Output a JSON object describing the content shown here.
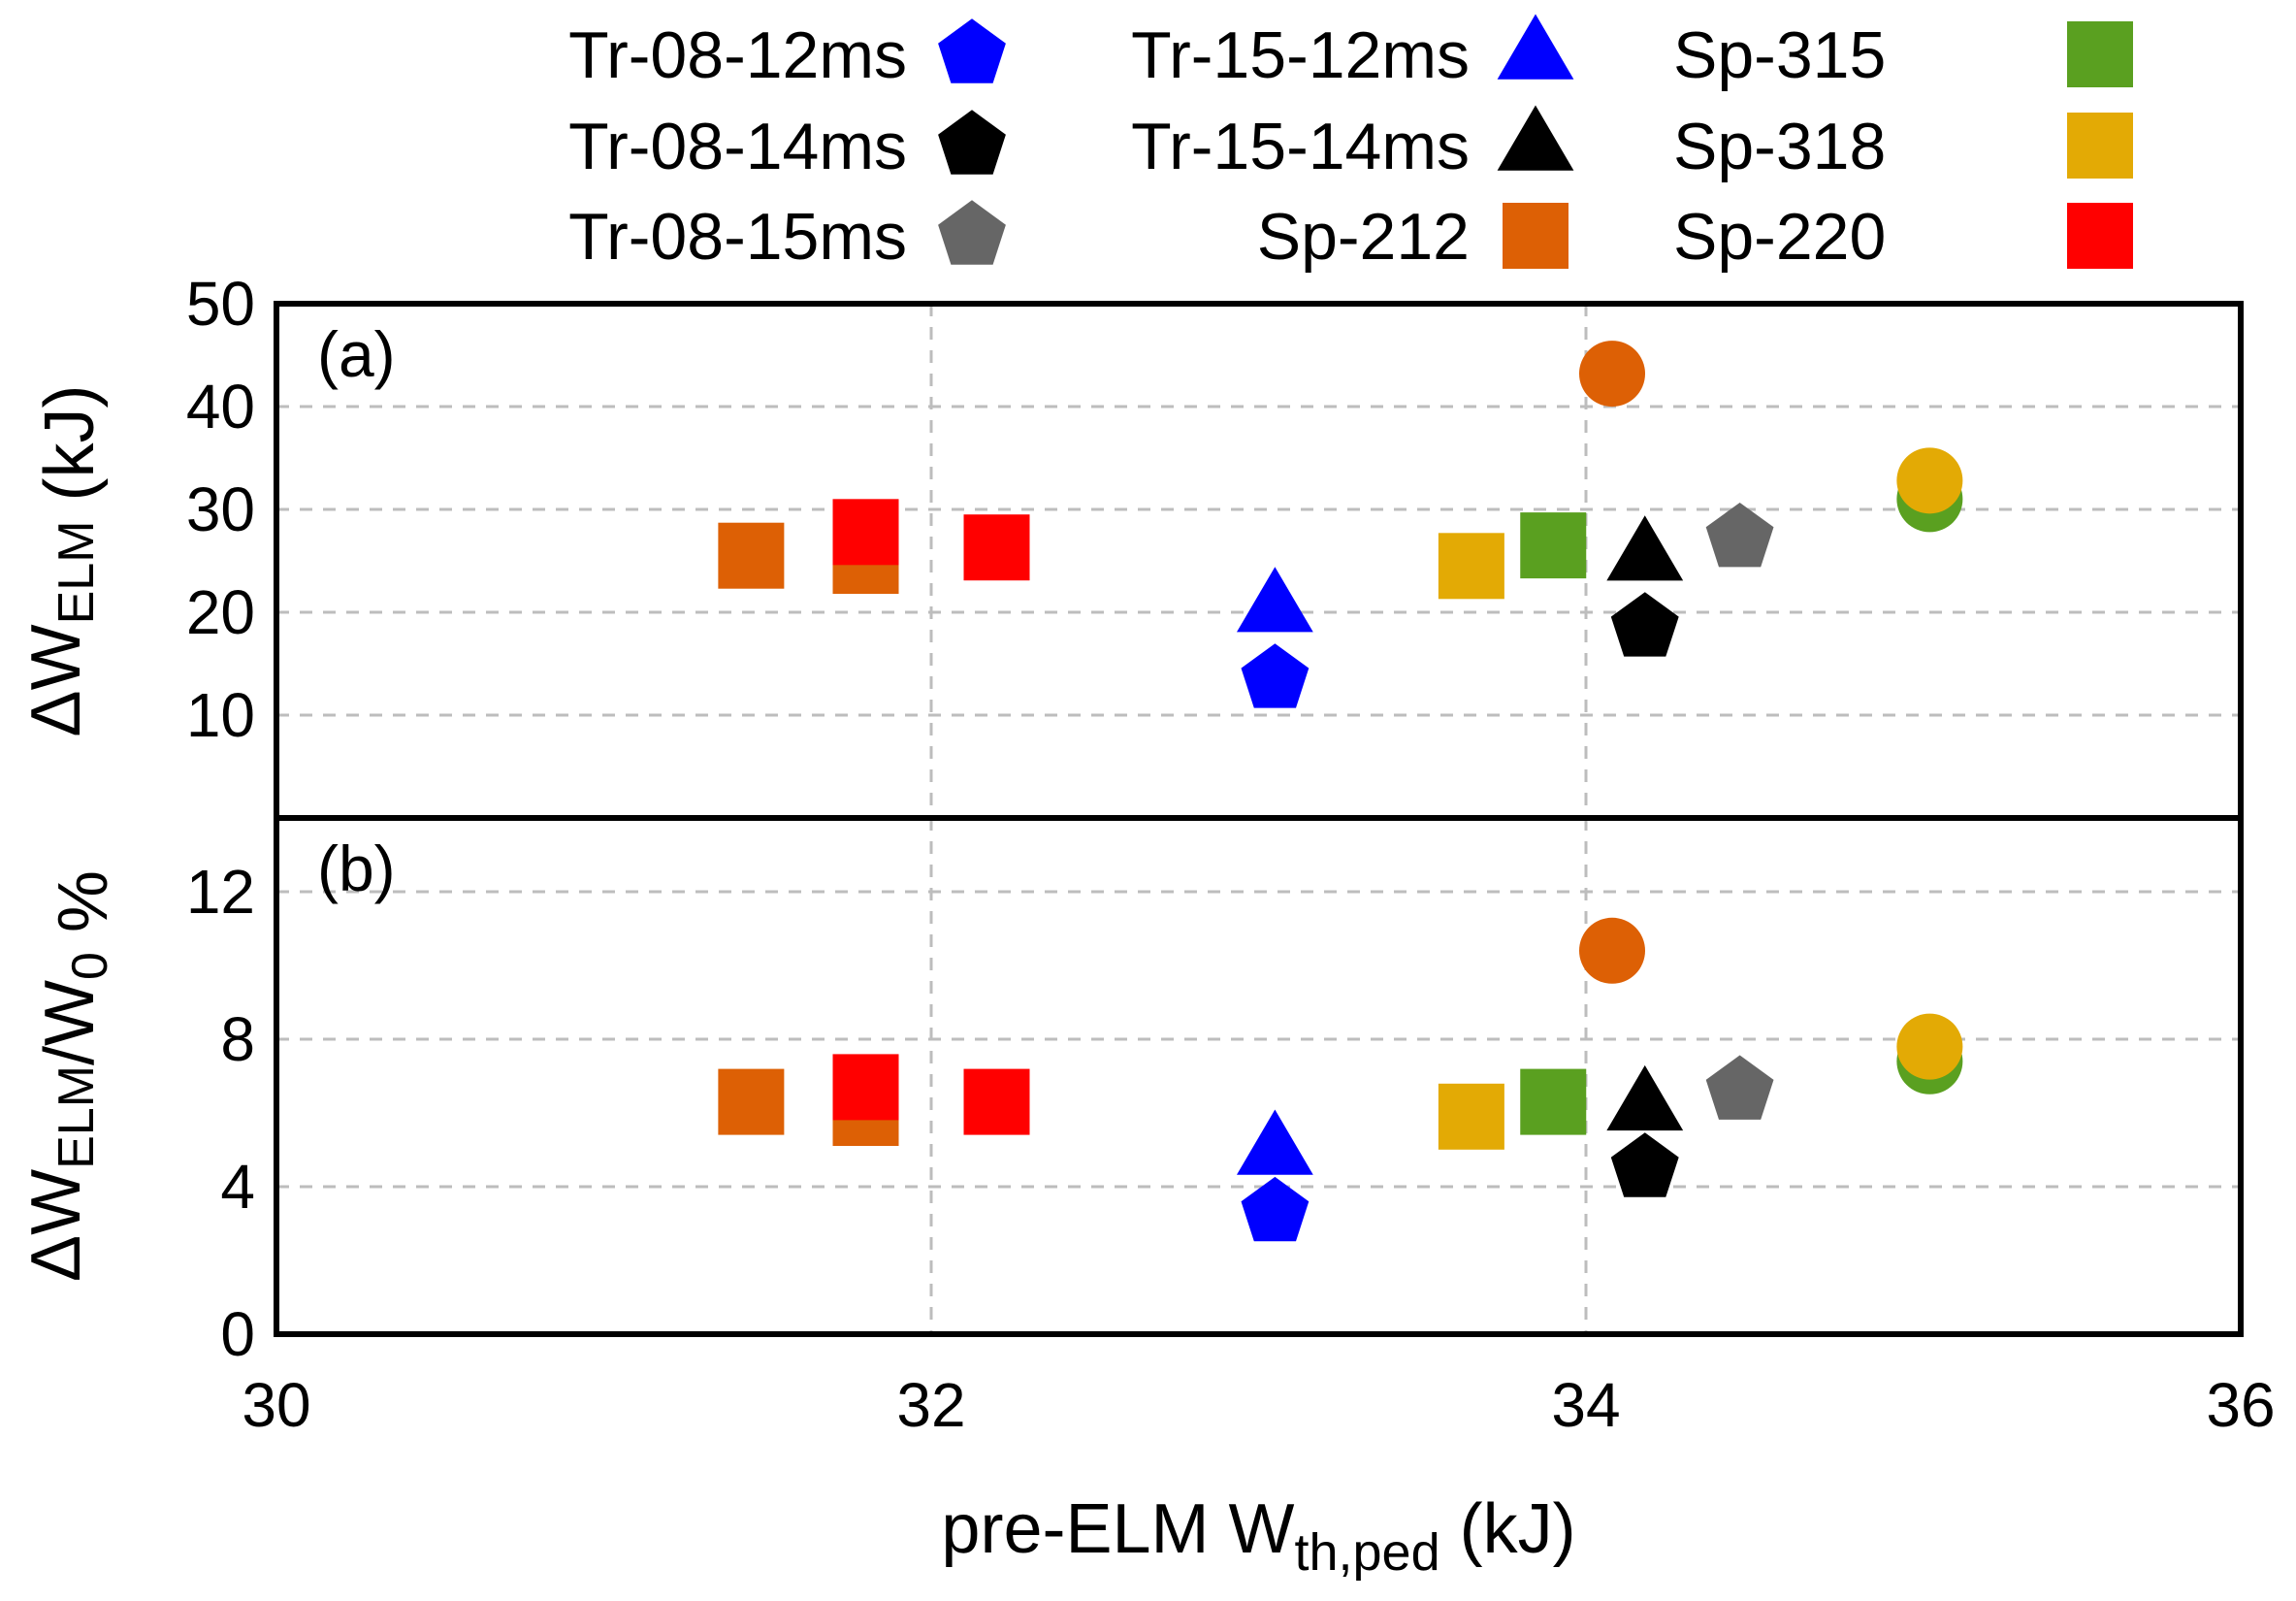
{
  "chart_data": {
    "type": "scatter",
    "xlabel": {
      "main": "pre-ELM W",
      "sub": "th,ped",
      "unit": " (kJ)"
    },
    "xlim": [
      30,
      36
    ],
    "xticks": [
      30,
      32,
      34,
      36
    ],
    "xgrid": [
      32,
      34
    ],
    "legend_placement": "top, above plot, 3 columns",
    "legend": [
      {
        "name": "Tr-08-12ms",
        "marker": "pentagon",
        "color": "#0000ff"
      },
      {
        "name": "Tr-08-14ms",
        "marker": "pentagon",
        "color": "#000000"
      },
      {
        "name": "Tr-08-15ms",
        "marker": "pentagon",
        "color": "#666666"
      },
      {
        "name": "Tr-15-12ms",
        "marker": "triangle",
        "color": "#0000ff"
      },
      {
        "name": "Tr-15-14ms",
        "marker": "triangle",
        "color": "#000000"
      },
      {
        "name": "Sp-212",
        "marker": "square",
        "color": "#dd6005"
      },
      {
        "name": "Sp-315",
        "marker": "square",
        "color": "#5aa020"
      },
      {
        "name": "Sp-318",
        "marker": "square",
        "color": "#e3aa05"
      },
      {
        "name": "Sp-220",
        "marker": "square",
        "color": "#ff0000"
      }
    ],
    "panels": [
      {
        "label": "(a)",
        "ylabel": {
          "prefix": "ΔW",
          "sub": "ELM",
          "suffix": " (kJ)"
        },
        "ylim": [
          0,
          50
        ],
        "yticks": [
          10,
          20,
          30,
          40,
          50
        ],
        "ygrid": [
          10,
          20,
          30,
          40
        ],
        "points": [
          {
            "series": "Sp-212",
            "marker": "square",
            "color": "#dd6005",
            "x": 31.45,
            "y": 25.5
          },
          {
            "series": "Sp-212",
            "marker": "square",
            "color": "#dd6005",
            "x": 31.8,
            "y": 25.0
          },
          {
            "series": "Sp-220",
            "marker": "square",
            "color": "#ff0000",
            "x": 31.8,
            "y": 27.8
          },
          {
            "series": "Sp-220",
            "marker": "square",
            "color": "#ff0000",
            "x": 32.2,
            "y": 26.3
          },
          {
            "series": "Tr-15-12ms",
            "marker": "triangle",
            "color": "#0000ff",
            "x": 33.05,
            "y": 20.5
          },
          {
            "series": "Tr-08-12ms",
            "marker": "pentagon",
            "color": "#0000ff",
            "x": 33.05,
            "y": 13.5
          },
          {
            "series": "Sp-318",
            "marker": "square",
            "color": "#e3aa05",
            "x": 33.65,
            "y": 24.5
          },
          {
            "series": "Sp-315",
            "marker": "square",
            "color": "#5aa020",
            "x": 33.9,
            "y": 26.5
          },
          {
            "series": "circle-orange",
            "marker": "circle",
            "color": "#dd6005",
            "x": 34.08,
            "y": 43.2
          },
          {
            "series": "Tr-15-14ms",
            "marker": "triangle",
            "color": "#000000",
            "x": 34.18,
            "y": 25.5
          },
          {
            "series": "Tr-08-14ms",
            "marker": "pentagon",
            "color": "#000000",
            "x": 34.18,
            "y": 18.5
          },
          {
            "series": "Tr-08-15ms",
            "marker": "pentagon",
            "color": "#666666",
            "x": 34.47,
            "y": 27.2
          },
          {
            "series": "circle-green",
            "marker": "circle",
            "color": "#5aa020",
            "x": 35.05,
            "y": 31.0
          },
          {
            "series": "circle-yellow",
            "marker": "circle",
            "color": "#e3aa05",
            "x": 35.05,
            "y": 32.8
          }
        ]
      },
      {
        "label": "(b)",
        "ylabel": {
          "prefix": "ΔW",
          "sub": "ELM",
          "mid": "/W",
          "sub2": "0",
          "suffix": " %"
        },
        "ylim": [
          0,
          14
        ],
        "yticks": [
          0,
          4,
          8,
          12
        ],
        "ygrid": [
          4,
          8,
          12
        ],
        "points": [
          {
            "series": "Sp-212",
            "marker": "square",
            "color": "#dd6005",
            "x": 31.45,
            "y": 6.3
          },
          {
            "series": "Sp-212",
            "marker": "square",
            "color": "#dd6005",
            "x": 31.8,
            "y": 6.0
          },
          {
            "series": "Sp-220",
            "marker": "square",
            "color": "#ff0000",
            "x": 31.8,
            "y": 6.7
          },
          {
            "series": "Sp-220",
            "marker": "square",
            "color": "#ff0000",
            "x": 32.2,
            "y": 6.3
          },
          {
            "series": "Tr-15-12ms",
            "marker": "triangle",
            "color": "#0000ff",
            "x": 33.05,
            "y": 5.0
          },
          {
            "series": "Tr-08-12ms",
            "marker": "pentagon",
            "color": "#0000ff",
            "x": 33.05,
            "y": 3.3
          },
          {
            "series": "Sp-318",
            "marker": "square",
            "color": "#e3aa05",
            "x": 33.65,
            "y": 5.9
          },
          {
            "series": "Sp-315",
            "marker": "square",
            "color": "#5aa020",
            "x": 33.9,
            "y": 6.3
          },
          {
            "series": "circle-orange",
            "marker": "circle",
            "color": "#dd6005",
            "x": 34.08,
            "y": 10.4
          },
          {
            "series": "Tr-15-14ms",
            "marker": "triangle",
            "color": "#000000",
            "x": 34.18,
            "y": 6.2
          },
          {
            "series": "Tr-08-14ms",
            "marker": "pentagon",
            "color": "#000000",
            "x": 34.18,
            "y": 4.5
          },
          {
            "series": "Tr-08-15ms",
            "marker": "pentagon",
            "color": "#666666",
            "x": 34.47,
            "y": 6.6
          },
          {
            "series": "circle-green",
            "marker": "circle",
            "color": "#5aa020",
            "x": 35.05,
            "y": 7.4
          },
          {
            "series": "circle-yellow",
            "marker": "circle",
            "color": "#e3aa05",
            "x": 35.05,
            "y": 7.8
          }
        ]
      }
    ]
  }
}
